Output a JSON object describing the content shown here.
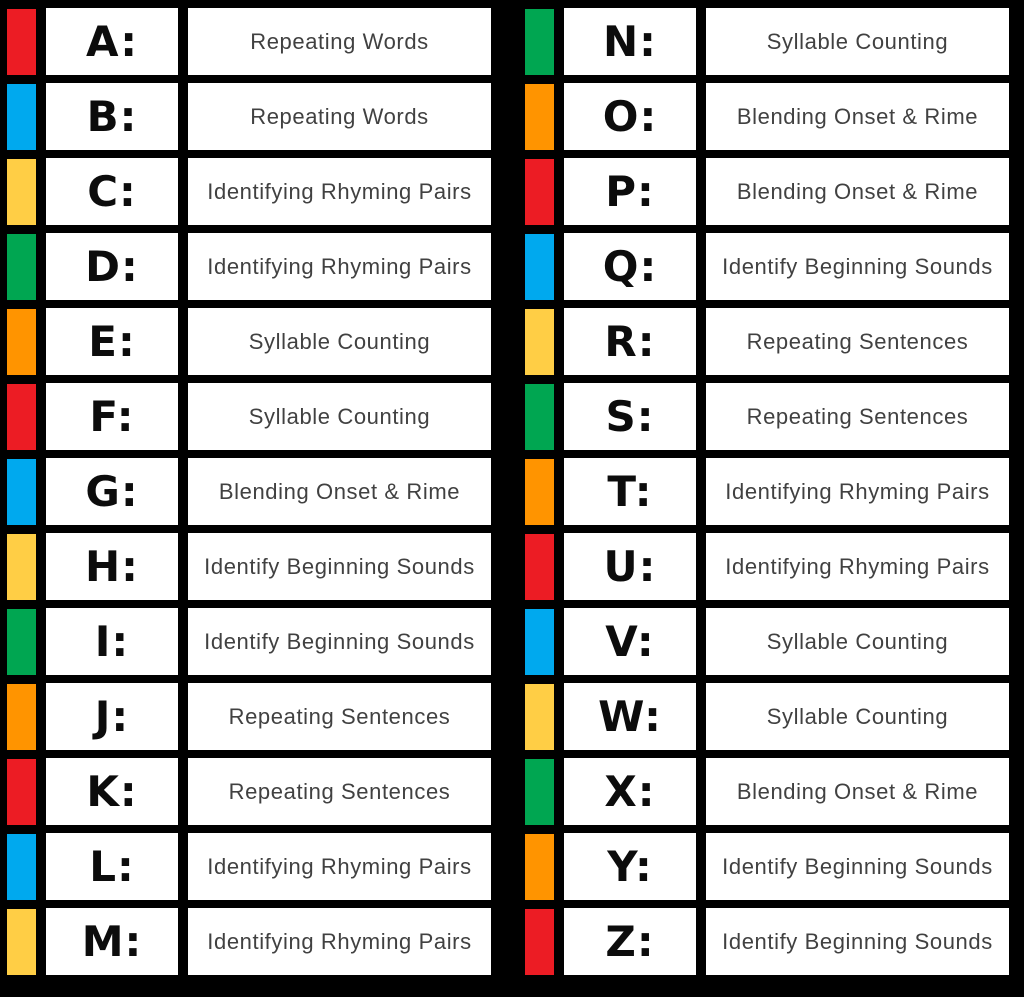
{
  "table": {
    "columns": [
      "letter",
      "skill"
    ],
    "rows_per_column": 13,
    "rows": [
      {
        "letter": "A:",
        "color": "red",
        "skill": "Repeating Words"
      },
      {
        "letter": "B:",
        "color": "blue",
        "skill": "Repeating Words"
      },
      {
        "letter": "C:",
        "color": "yellow",
        "skill": "Identifying Rhyming Pairs"
      },
      {
        "letter": "D:",
        "color": "green",
        "skill": "Identifying Rhyming Pairs"
      },
      {
        "letter": "E:",
        "color": "orange",
        "skill": "Syllable Counting"
      },
      {
        "letter": "F:",
        "color": "red",
        "skill": "Syllable Counting"
      },
      {
        "letter": "G:",
        "color": "blue",
        "skill": "Blending Onset & Rime"
      },
      {
        "letter": "H:",
        "color": "yellow",
        "skill": "Identify Beginning Sounds"
      },
      {
        "letter": "I:",
        "color": "green",
        "skill": "Identify Beginning Sounds"
      },
      {
        "letter": "J:",
        "color": "orange",
        "skill": "Repeating Sentences"
      },
      {
        "letter": "K:",
        "color": "red",
        "skill": "Repeating Sentences"
      },
      {
        "letter": "L:",
        "color": "blue",
        "skill": "Identifying Rhyming Pairs"
      },
      {
        "letter": "M:",
        "color": "yellow",
        "skill": "Identifying Rhyming Pairs"
      },
      {
        "letter": "N:",
        "color": "green",
        "skill": "Syllable Counting"
      },
      {
        "letter": "O:",
        "color": "orange",
        "skill": "Blending Onset & Rime"
      },
      {
        "letter": "P:",
        "color": "red",
        "skill": "Blending Onset & Rime"
      },
      {
        "letter": "Q:",
        "color": "blue",
        "skill": "Identify Beginning Sounds"
      },
      {
        "letter": "R:",
        "color": "yellow",
        "skill": "Repeating Sentences"
      },
      {
        "letter": "S:",
        "color": "green",
        "skill": "Repeating Sentences"
      },
      {
        "letter": "T:",
        "color": "orange",
        "skill": "Identifying Rhyming Pairs"
      },
      {
        "letter": "U:",
        "color": "red",
        "skill": "Identifying Rhyming Pairs"
      },
      {
        "letter": "V:",
        "color": "blue",
        "skill": "Syllable Counting"
      },
      {
        "letter": "W:",
        "color": "yellow",
        "skill": "Syllable Counting"
      },
      {
        "letter": "X:",
        "color": "green",
        "skill": "Blending Onset & Rime"
      },
      {
        "letter": "Y:",
        "color": "orange",
        "skill": "Identify Beginning Sounds"
      },
      {
        "letter": "Z:",
        "color": "red",
        "skill": "Identify Beginning Sounds"
      }
    ]
  },
  "colors": {
    "red": "#EC1C24",
    "blue": "#00A9EE",
    "yellow": "#FFCE45",
    "green": "#00A651",
    "orange": "#FF9400",
    "background": "#000000",
    "cell_background": "#FFFFFF",
    "letter_text": "#0C0C0C",
    "skill_text": "#414141"
  }
}
